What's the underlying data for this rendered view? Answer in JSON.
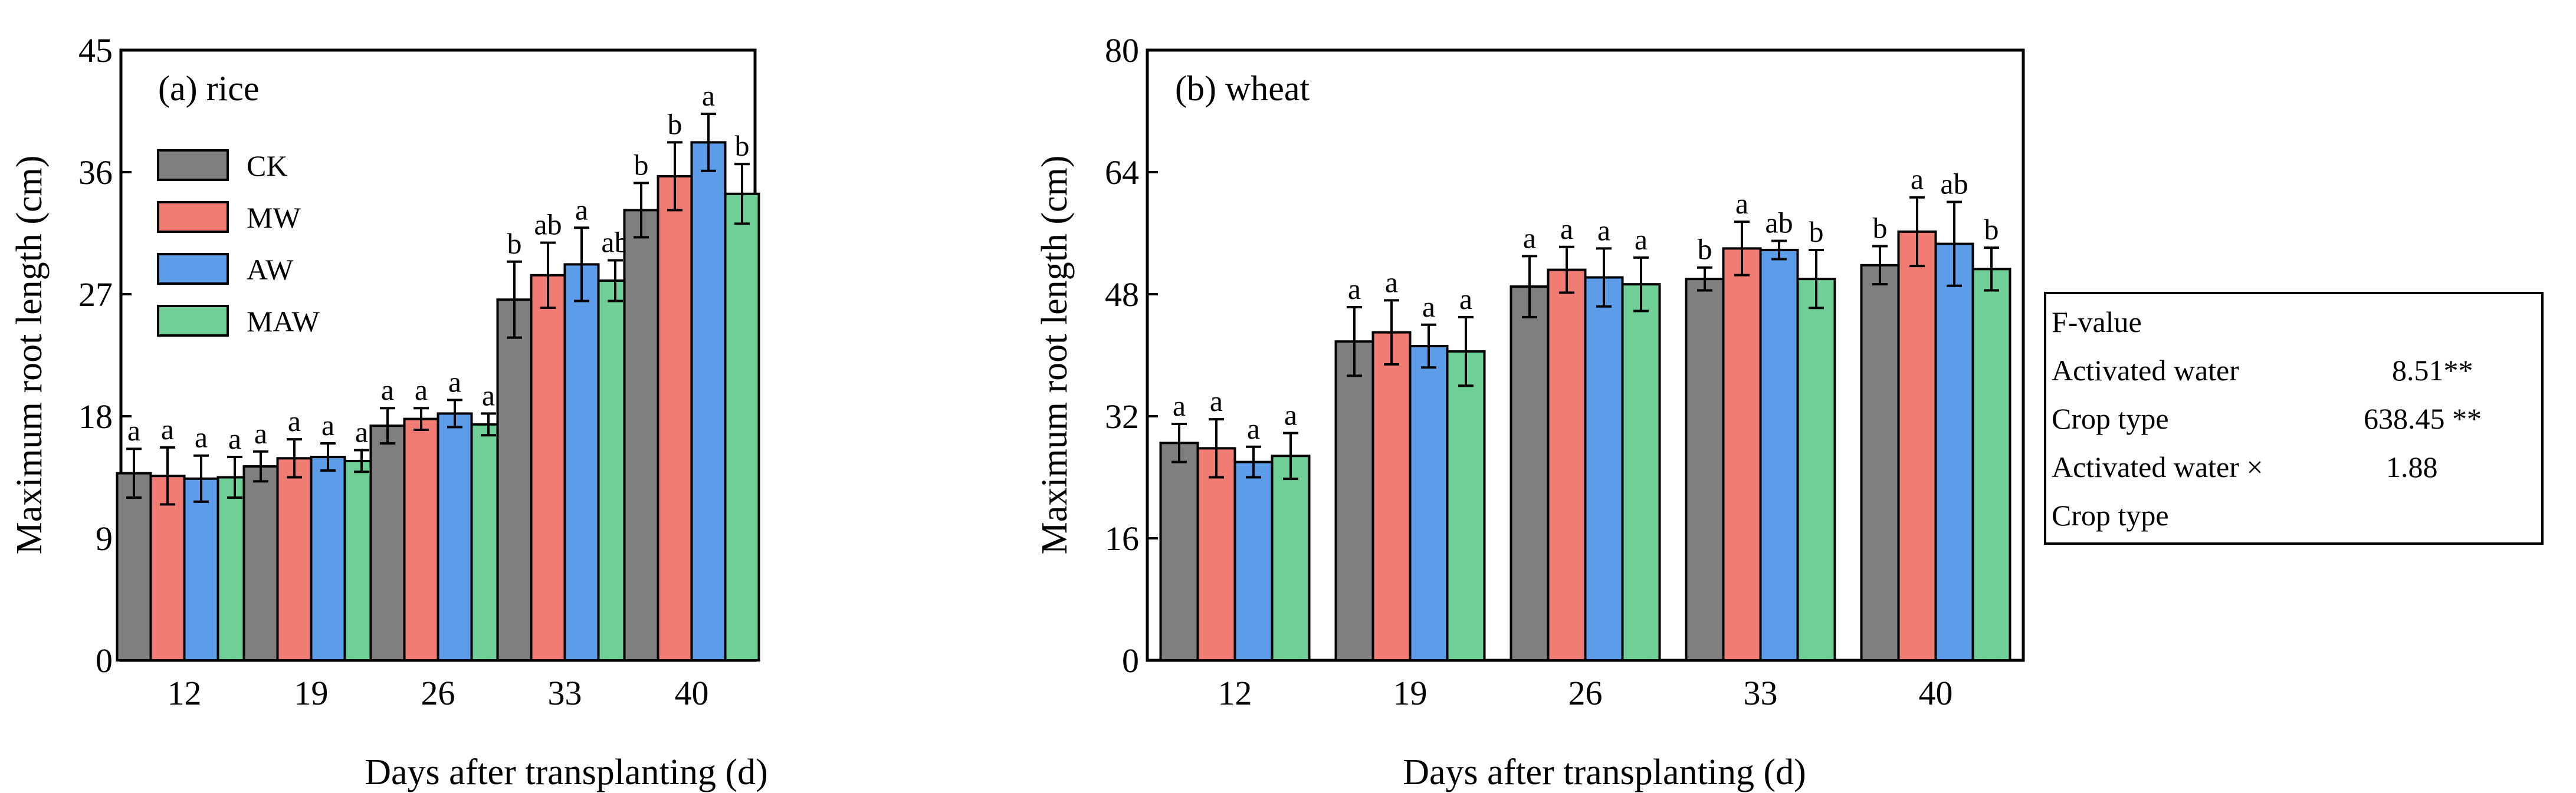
{
  "colors": {
    "CK": "#7f7f7f",
    "MW": "#f07c74",
    "AW": "#5c9ce8",
    "MAW": "#6fcf96",
    "axis": "#000000",
    "background": "#ffffff"
  },
  "legend": {
    "entries": [
      "CK",
      "MW",
      "AW",
      "MAW"
    ]
  },
  "stats": {
    "heading": "F-value",
    "rows": [
      {
        "label": "Activated water",
        "value": "8.51**"
      },
      {
        "label": "Crop type",
        "value": "638.45 **"
      },
      {
        "label": "Activated water ×",
        "value": "1.88"
      },
      {
        "label": "Crop type",
        "value": ""
      }
    ]
  },
  "chart_data": [
    {
      "type": "bar",
      "title": "(a) rice",
      "xlabel": "Days after transplanting (d)",
      "ylabel": "Maximum root length (cm)",
      "ylim": [
        0,
        45
      ],
      "yticks": [
        0,
        9,
        18,
        27,
        36,
        45
      ],
      "categories": [
        "12",
        "19",
        "26",
        "33",
        "40"
      ],
      "series": [
        {
          "name": "CK",
          "values": [
            13.8,
            14.3,
            17.3,
            26.6,
            33.2
          ],
          "errors": [
            1.8,
            1.1,
            1.3,
            2.8,
            2.0
          ],
          "letters": [
            "a",
            "a",
            "a",
            "b",
            "b"
          ]
        },
        {
          "name": "MW",
          "values": [
            13.6,
            14.9,
            17.8,
            28.4,
            35.7
          ],
          "errors": [
            2.1,
            1.4,
            0.8,
            2.4,
            2.5
          ],
          "letters": [
            "a",
            "a",
            "a",
            "ab",
            "b"
          ]
        },
        {
          "name": "AW",
          "values": [
            13.4,
            15.0,
            18.2,
            29.2,
            38.2
          ],
          "errors": [
            1.7,
            1.0,
            1.0,
            2.7,
            2.1
          ],
          "letters": [
            "a",
            "a",
            "a",
            "a",
            "a"
          ]
        },
        {
          "name": "MAW",
          "values": [
            13.5,
            14.7,
            17.4,
            28.0,
            34.4
          ],
          "errors": [
            1.5,
            0.8,
            0.8,
            1.5,
            2.2
          ],
          "letters": [
            "a",
            "a",
            "a",
            "ab",
            "b"
          ]
        }
      ]
    },
    {
      "type": "bar",
      "title": "(b) wheat",
      "xlabel": "Days after transplanting (d)",
      "ylabel": "Maximum root length (cm)",
      "ylim": [
        0,
        80
      ],
      "yticks": [
        0,
        16,
        32,
        48,
        64,
        80
      ],
      "categories": [
        "12",
        "19",
        "26",
        "33",
        "40"
      ],
      "series": [
        {
          "name": "CK",
          "values": [
            28.5,
            41.8,
            49.0,
            50.0,
            51.8
          ],
          "errors": [
            2.5,
            4.5,
            4.0,
            1.5,
            2.5
          ],
          "letters": [
            "a",
            "a",
            "a",
            "b",
            "b"
          ]
        },
        {
          "name": "MW",
          "values": [
            27.8,
            43.0,
            51.2,
            54.0,
            56.2
          ],
          "errors": [
            3.8,
            4.2,
            3.0,
            3.5,
            4.5
          ],
          "letters": [
            "a",
            "a",
            "a",
            "a",
            "a"
          ]
        },
        {
          "name": "AW",
          "values": [
            26.0,
            41.2,
            50.2,
            53.8,
            54.6
          ],
          "errors": [
            2.0,
            2.8,
            3.8,
            1.2,
            5.5
          ],
          "letters": [
            "a",
            "a",
            "a",
            "ab",
            "ab"
          ]
        },
        {
          "name": "MAW",
          "values": [
            26.8,
            40.5,
            49.3,
            50.0,
            51.3
          ],
          "errors": [
            3.0,
            4.5,
            3.5,
            3.8,
            2.8
          ],
          "letters": [
            "a",
            "a",
            "a",
            "b",
            "b"
          ]
        }
      ]
    }
  ]
}
